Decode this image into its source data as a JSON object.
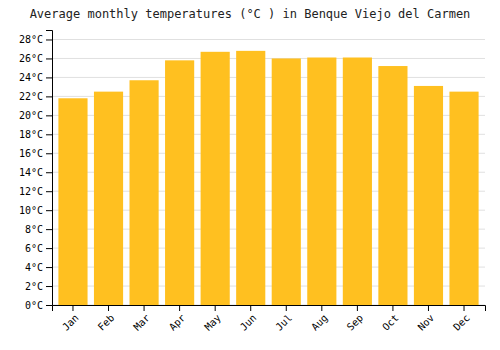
{
  "chart_data": {
    "type": "bar",
    "title": "Average monthly temperatures (°C ) in Benque Viejo del Carmen",
    "categories": [
      "Jan",
      "Feb",
      "Mar",
      "Apr",
      "May",
      "Jun",
      "Jul",
      "Aug",
      "Sep",
      "Oct",
      "Nov",
      "Dec"
    ],
    "values": [
      21.8,
      22.5,
      23.7,
      25.8,
      26.7,
      26.8,
      26.0,
      26.1,
      26.1,
      25.2,
      23.1,
      22.5
    ],
    "color": "#FFC020",
    "ylim": [
      0,
      29
    ],
    "yticks": [
      {
        "value": 0,
        "label": "0°C"
      },
      {
        "value": 2,
        "label": "2°C"
      },
      {
        "value": 4,
        "label": "4°C"
      },
      {
        "value": 6,
        "label": "6°C"
      },
      {
        "value": 8,
        "label": "8°C"
      },
      {
        "value": 10,
        "label": "10°C"
      },
      {
        "value": 12,
        "label": "12°C"
      },
      {
        "value": 14,
        "label": "14°C"
      },
      {
        "value": 16,
        "label": "16°C"
      },
      {
        "value": 18,
        "label": "18°C"
      },
      {
        "value": 20,
        "label": "20°C"
      },
      {
        "value": 22,
        "label": "22°C"
      },
      {
        "value": 24,
        "label": "24°C"
      },
      {
        "value": 26,
        "label": "26°C"
      },
      {
        "value": 28,
        "label": "28°C"
      }
    ],
    "grid": true
  }
}
